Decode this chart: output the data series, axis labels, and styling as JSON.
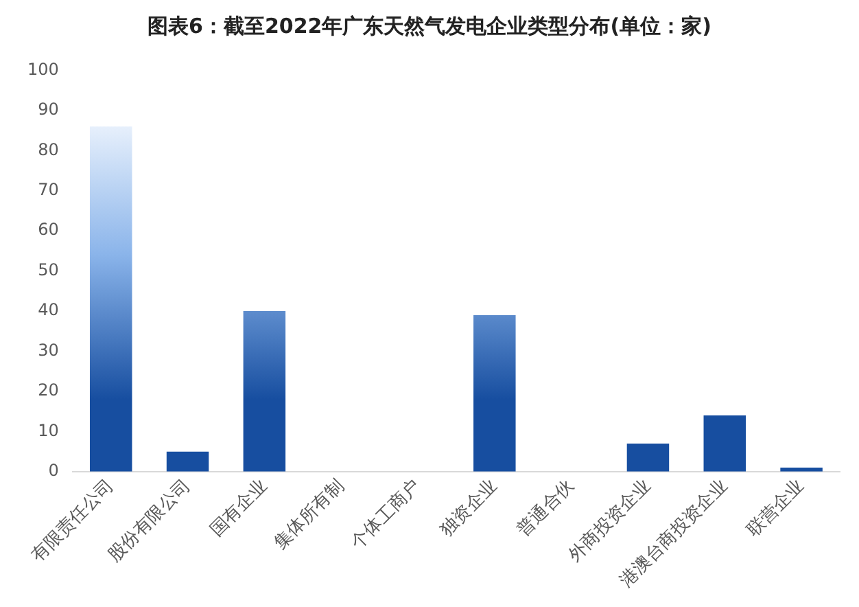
{
  "chart_data": {
    "type": "bar",
    "title": "图表6：截至2022年广东天然气发电企业类型分布(单位：家)",
    "categories": [
      "有限责任公司",
      "股份有限公司",
      "国有企业",
      "集体所有制",
      "个体工商户",
      "独资企业",
      "普通合伙",
      "外商投资企业",
      "港澳台商投资企业",
      "联营企业"
    ],
    "values": [
      86,
      5,
      40,
      0,
      0,
      39,
      0,
      7,
      14,
      1
    ],
    "color": "#174ea0",
    "ylim": [
      0,
      100
    ],
    "yticks": [
      0,
      10,
      20,
      30,
      40,
      50,
      60,
      70,
      80,
      90,
      100
    ],
    "grid": false,
    "legend": false
  }
}
